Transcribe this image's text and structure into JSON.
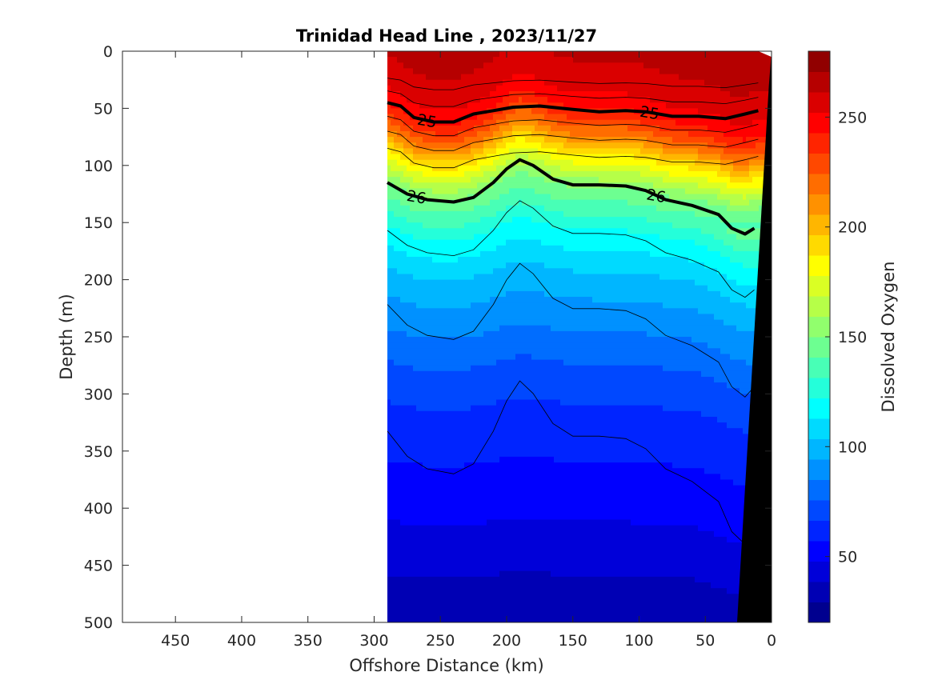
{
  "chart_data": {
    "type": "contour",
    "title": "Trinidad Head Line , 2023/11/27",
    "xlabel": "Offshore Distance (km)",
    "ylabel": "Depth (m)",
    "colorbar_label": "Dissolved Oxygen",
    "xlim": [
      490,
      0
    ],
    "ylim": [
      500,
      0
    ],
    "x_ticks": [
      450,
      400,
      350,
      300,
      250,
      200,
      150,
      100,
      50,
      0
    ],
    "y_ticks": [
      0,
      50,
      100,
      150,
      200,
      250,
      300,
      350,
      400,
      450,
      500
    ],
    "colorbar_range": [
      20,
      280
    ],
    "colorbar_ticks": [
      50,
      100,
      150,
      200,
      250
    ],
    "data_extent_km": [
      290,
      0
    ],
    "colormap": [
      "#00008f",
      "#0000b4",
      "#0000d9",
      "#0000ff",
      "#0024ff",
      "#0048ff",
      "#006dff",
      "#0091ff",
      "#00b6ff",
      "#00daff",
      "#00ffff",
      "#24ffda",
      "#48ffb6",
      "#6dff91",
      "#91ff6d",
      "#b6ff48",
      "#daff24",
      "#ffff00",
      "#ffda00",
      "#ffb600",
      "#ff9100",
      "#ff6d00",
      "#ff4800",
      "#ff2400",
      "#ff0000",
      "#da0000",
      "#b60000",
      "#910000"
    ],
    "oxygen_profile": {
      "depths": [
        0,
        30,
        45,
        60,
        75,
        90,
        105,
        120,
        140,
        160,
        180,
        200,
        230,
        260,
        290,
        330,
        370,
        410,
        450,
        500
      ],
      "values": [
        265,
        255,
        250,
        235,
        215,
        190,
        170,
        150,
        135,
        120,
        110,
        100,
        90,
        80,
        70,
        62,
        55,
        48,
        40,
        30
      ]
    },
    "isopycnals": [
      {
        "label": "25",
        "x": [
          290,
          280,
          270,
          255,
          240,
          225,
          210,
          195,
          175,
          150,
          130,
          110,
          95,
          75,
          55,
          35,
          20,
          10
        ],
        "y": [
          45,
          48,
          58,
          62,
          62,
          55,
          52,
          49,
          48,
          51,
          53,
          52,
          53,
          57,
          57,
          59,
          55,
          52
        ]
      },
      {
        "label": "26",
        "x": [
          290,
          275,
          260,
          240,
          225,
          210,
          200,
          190,
          180,
          165,
          150,
          130,
          110,
          95,
          80,
          60,
          40,
          30,
          20,
          13
        ],
        "y": [
          115,
          125,
          130,
          132,
          128,
          115,
          103,
          95,
          100,
          112,
          117,
          117,
          118,
          122,
          130,
          135,
          143,
          155,
          160,
          155
        ]
      }
    ],
    "contour_labels": [
      "25",
      "25",
      "26",
      "26"
    ]
  }
}
